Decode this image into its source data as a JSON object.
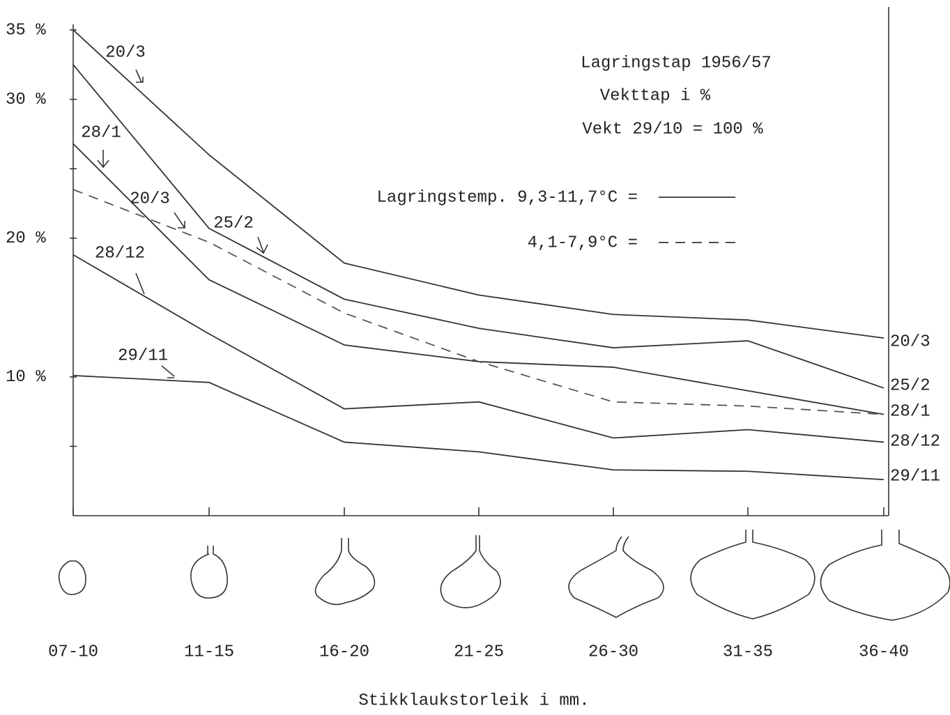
{
  "chart_data": {
    "type": "line",
    "title": [
      "Lagringstap 1956/57",
      "Vekttap i %",
      "Vekt 29/10 = 100 %"
    ],
    "categories": [
      "07-10",
      "11-15",
      "16-20",
      "21-25",
      "26-30",
      "31-35",
      "36-40"
    ],
    "x_label": "Stikklaukstorleik i mm.",
    "ylim": [
      0,
      35
    ],
    "yticks": [
      {
        "value": 5,
        "label": null
      },
      {
        "value": 10,
        "label": "10 %"
      },
      {
        "value": 20,
        "label": "20 %"
      },
      {
        "value": 25,
        "label": null
      },
      {
        "value": 30,
        "label": "30 %"
      },
      {
        "value": 35,
        "label": "35 %"
      }
    ],
    "series": [
      {
        "name": "20/3",
        "color": "#333333",
        "dashed": false,
        "values": [
          35,
          26.0,
          18.2,
          15.9,
          14.5,
          14.1,
          12.8
        ]
      },
      {
        "name": "25/2",
        "color": "#333333",
        "dashed": false,
        "values": [
          32.5,
          20.7,
          15.6,
          13.5,
          12.1,
          12.6,
          9.2
        ]
      },
      {
        "name": "28/1",
        "color": "#333333",
        "dashed": false,
        "values": [
          26.8,
          17.0,
          12.3,
          11.1,
          10.7,
          9.0,
          7.3
        ]
      },
      {
        "name": "20/3",
        "color": "#555555",
        "dashed": true,
        "values": [
          23.5,
          19.7,
          14.6,
          11.1,
          8.2,
          7.9,
          7.3
        ]
      },
      {
        "name": "28/12",
        "color": "#333333",
        "dashed": false,
        "values": [
          18.8,
          13.1,
          7.7,
          8.2,
          5.6,
          6.2,
          5.3
        ]
      },
      {
        "name": "29/11",
        "color": "#333333",
        "dashed": false,
        "values": [
          10.1,
          9.6,
          5.3,
          4.6,
          3.3,
          3.2,
          2.6
        ]
      }
    ],
    "end_labels": [
      "20/3",
      "25/2",
      "28/1",
      "28/12",
      "29/11"
    ],
    "legend": [
      {
        "label": "Lagringstemp. 9,3-11,7°C =",
        "dashed": false
      },
      {
        "label": "4,1-7,9°C =",
        "dashed": true
      }
    ]
  }
}
